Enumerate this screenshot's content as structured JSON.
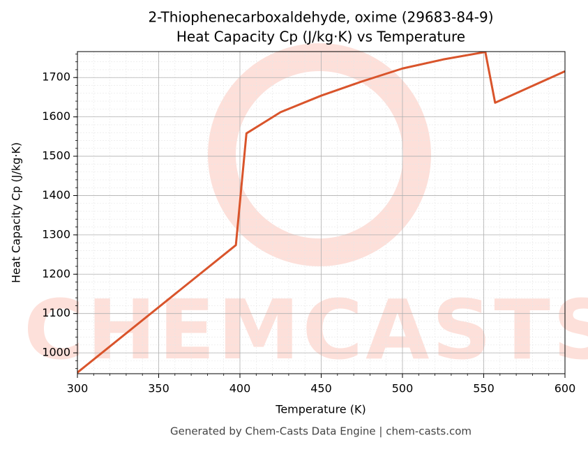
{
  "chart_data": {
    "type": "line",
    "title": "2-Thiophenecarboxaldehyde, oxime (29683-84-9)",
    "subtitle": "Heat Capacity Cp (J/kg·K) vs Temperature",
    "x_label": "Temperature (K)",
    "y_label": "Heat Capacity Cp (J/kg·K)",
    "footer": "Generated by Chem-Casts Data Engine | chem-casts.com",
    "watermark": "CHEMCASTS",
    "x": [
      300,
      397.5,
      404,
      425,
      450,
      475,
      500,
      525,
      551,
      557,
      600
    ],
    "series": [
      {
        "name": "Heat Capacity Cp",
        "color": "#d9542b",
        "values": [
          950,
          1274,
          1558,
          1612,
          1654,
          1690,
          1723,
          1746,
          1765,
          1636,
          1716
        ]
      }
    ],
    "xlim": [
      300,
      600
    ],
    "xticks": [
      300,
      350,
      400,
      450,
      500,
      550,
      600
    ],
    "ylim": [
      947,
      1766
    ],
    "yticks": [
      1000,
      1100,
      1200,
      1300,
      1400,
      1500,
      1600,
      1700
    ],
    "grid": true
  }
}
